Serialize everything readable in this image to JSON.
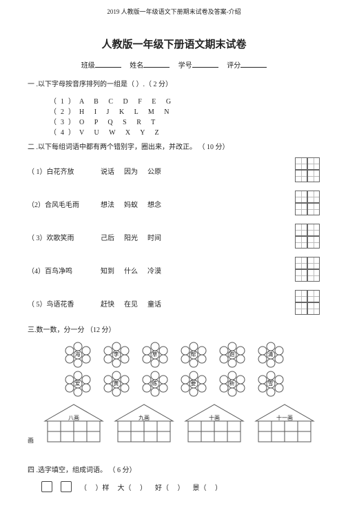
{
  "header": "2019 人教版一年级语文下册期末试卷及答案-介绍",
  "title": "人教版一年级下册语文期末试卷",
  "info": {
    "class": "班级",
    "name": "姓名",
    "id": "学号",
    "score": "评分"
  },
  "q1": {
    "stem": "一 .以下字母按音序排列的一组是（        ）.（ 2 分）",
    "opts": [
      "（1）A    B    C    D    F    E    G",
      "（2）H    I    J    K    L    M    N",
      "（3）O   P   Q        S   R   T",
      "（4）V   U   W        X   Y   Z"
    ]
  },
  "q2": {
    "stem": "二 .以下每组词语中都有两个错别字，圈出来，并改正。    （ 10 分）",
    "rows": [
      {
        "lead": "（ 1）白花齐放",
        "w": [
          "说话",
          "因为",
          "公原"
        ]
      },
      {
        "lead": "（2）合风毛毛雨",
        "w": [
          "想法",
          "妈蚁",
          "想念"
        ]
      },
      {
        "lead": "（ 3）欢歌笑雨",
        "w": [
          "己后",
          "阳光",
          "时间"
        ]
      },
      {
        "lead": "（4）百鸟净鸣",
        "w": [
          "知到",
          "什么",
          "冷漠"
        ]
      },
      {
        "lead": "（ 5）鸟语花香",
        "w": [
          "赶快",
          "在见",
          "童话"
        ]
      }
    ]
  },
  "q3": {
    "stem": "三.数一数，分一分    （12 分）",
    "flowers_top": [
      "海",
      "李",
      "草",
      "帮",
      "跑",
      "清"
    ],
    "flowers_bot": [
      "爱",
      "黄",
      "练",
      "要",
      "新",
      "雪"
    ],
    "houses": [
      "八画",
      "九画",
      "十画",
      "十一画"
    ]
  },
  "q4": {
    "stem": "四 .选字填空，组成词语。  （ 6 分）",
    "items": [
      "（     ）样",
      "大（     ）",
      "好（     ）",
      "景（     ）"
    ]
  },
  "style": {
    "flower_stroke": "#555",
    "house_stroke": "#555",
    "grid_stroke": "#666"
  }
}
